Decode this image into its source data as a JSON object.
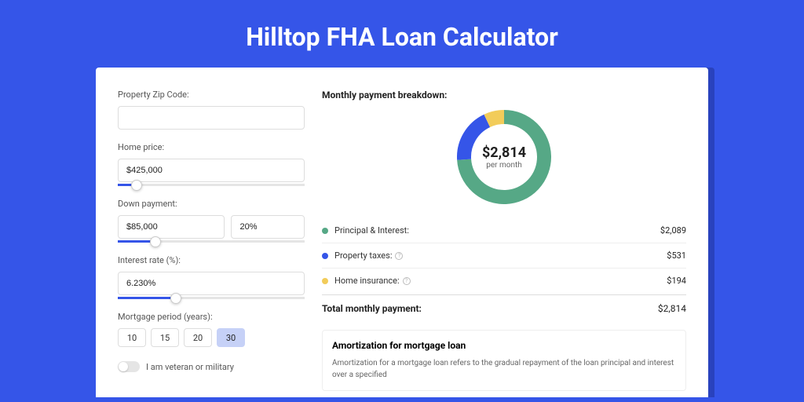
{
  "page": {
    "title": "Hilltop FHA Loan Calculator",
    "background_color": "#3555e8",
    "shadow_color": "#2942bd"
  },
  "form": {
    "zip": {
      "label": "Property Zip Code:",
      "value": ""
    },
    "home_price": {
      "label": "Home price:",
      "value": "$425,000",
      "slider_pct": 10
    },
    "down_payment": {
      "label": "Down payment:",
      "amount": "$85,000",
      "percent": "20%",
      "slider_pct": 20
    },
    "interest_rate": {
      "label": "Interest rate (%):",
      "value": "6.230%",
      "slider_pct": 31
    },
    "mortgage_period": {
      "label": "Mortgage period (years):",
      "options": [
        "10",
        "15",
        "20",
        "30"
      ],
      "selected": "30"
    },
    "veteran": {
      "label": "I am veteran or military",
      "checked": false
    }
  },
  "breakdown": {
    "title": "Monthly payment breakdown:",
    "donut": {
      "amount": "$2,814",
      "sub": "per month",
      "size": 120,
      "stroke_width": 18,
      "slices": [
        {
          "label": "Principal & Interest:",
          "value": "$2,089",
          "color": "#56a886",
          "pct": 74,
          "has_info": false
        },
        {
          "label": "Property taxes:",
          "value": "$531",
          "color": "#3555e8",
          "pct": 19,
          "has_info": true
        },
        {
          "label": "Home insurance:",
          "value": "$194",
          "color": "#f2cc5a",
          "pct": 7,
          "has_info": true
        }
      ]
    },
    "total": {
      "label": "Total monthly payment:",
      "value": "$2,814"
    }
  },
  "amortization": {
    "title": "Amortization for mortgage loan",
    "text": "Amortization for a mortgage loan refers to the gradual repayment of the loan principal and interest over a specified"
  }
}
